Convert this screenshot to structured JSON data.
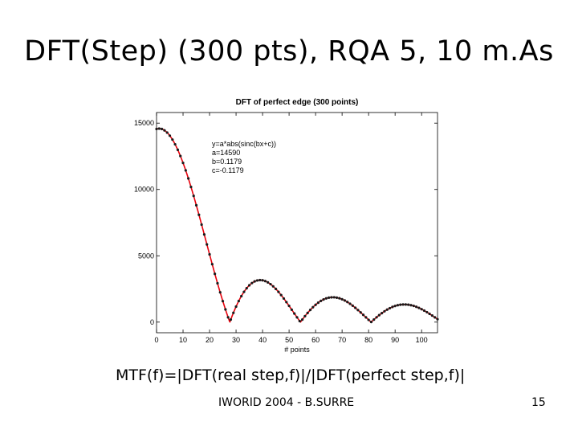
{
  "slide": {
    "title": "DFT(Step) (300 pts), RQA 5, 10 m.As",
    "caption": "MTF(f)=|DFT(real step,f)|/|DFT(perfect step,f)|",
    "footer": "IWORID 2004 - B.SURRE",
    "page_number": "15"
  },
  "chart_data": {
    "type": "line",
    "title": "DFT of perfect edge (300 points)",
    "xlabel": "# points",
    "ylabel": "",
    "xlim": [
      0,
      106
    ],
    "ylim": [
      -800,
      15800
    ],
    "xticks": [
      0,
      10,
      20,
      30,
      40,
      50,
      60,
      70,
      80,
      90,
      100
    ],
    "yticks": [
      0,
      5000,
      10000,
      15000
    ],
    "grid": false,
    "annotation": [
      "y=a*abs(sinc(bx+c))",
      "a=14590",
      "b=0.1179",
      "c=-0.1179"
    ],
    "series": [
      {
        "marker_color": "#1a1a1a",
        "line_color": "#e8000b",
        "fit": {
          "a": 14590,
          "b": 0.1179,
          "c": -0.1179
        },
        "x_range": [
          0,
          106
        ]
      }
    ]
  }
}
